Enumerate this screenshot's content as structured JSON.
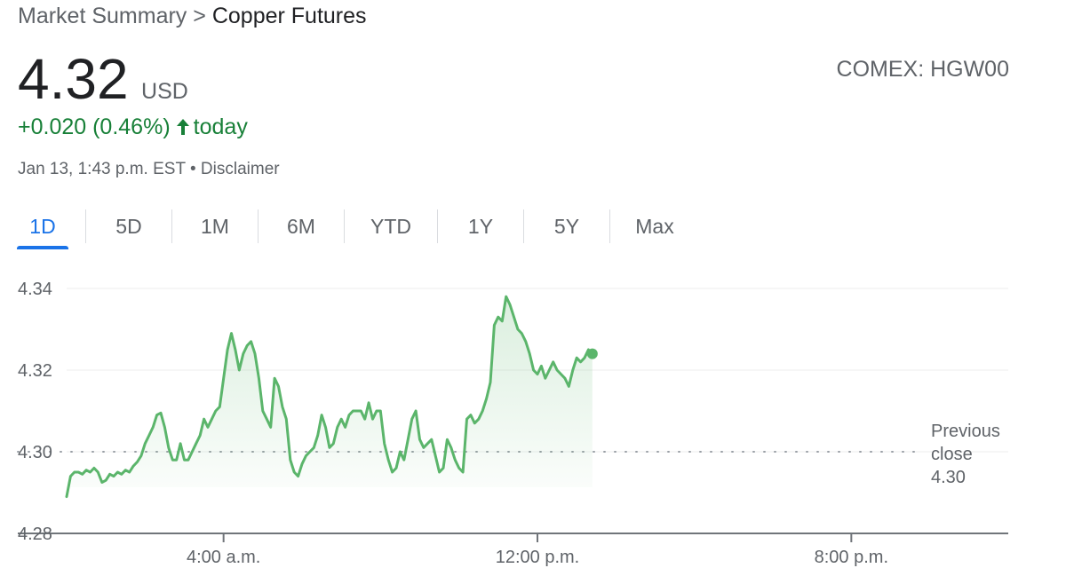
{
  "breadcrumb": {
    "parent": "Market Summary",
    "separator": ">",
    "current": "Copper Futures"
  },
  "quote": {
    "price": "4.32",
    "currency": "USD",
    "exchange": "COMEX: HGW00",
    "change": "+0.020 (0.46%)",
    "direction_icon": "arrow-up-icon",
    "period": "today",
    "timestamp": "Jan 13, 1:43 p.m. EST",
    "bullet": "•",
    "disclaimer": "Disclaimer"
  },
  "tabs": [
    {
      "label": "1D",
      "active": true
    },
    {
      "label": "5D",
      "active": false
    },
    {
      "label": "1M",
      "active": false
    },
    {
      "label": "6M",
      "active": false
    },
    {
      "label": "YTD",
      "active": false
    },
    {
      "label": "1Y",
      "active": false
    },
    {
      "label": "5Y",
      "active": false
    },
    {
      "label": "Max",
      "active": false
    }
  ],
  "colors": {
    "up": "#188038",
    "line": "#5bb56b",
    "accent": "#1a73e8"
  },
  "chart_data": {
    "type": "area",
    "x_unit": "hours",
    "ylim": [
      4.28,
      4.34
    ],
    "y_ticks": [
      4.34,
      4.32,
      4.3,
      4.28
    ],
    "x_ticks": [
      {
        "value": 4,
        "label": "4:00 a.m."
      },
      {
        "value": 12,
        "label": "12:00 p.m."
      },
      {
        "value": 20,
        "label": "8:00 p.m."
      }
    ],
    "xlim": [
      0,
      24
    ],
    "previous_close": {
      "value": 4.3,
      "label_lines": [
        "Previous",
        "close",
        "4.30"
      ]
    },
    "grid": true,
    "series": [
      {
        "points": [
          [
            0.0,
            4.289
          ],
          [
            0.1,
            4.294
          ],
          [
            0.2,
            4.295
          ],
          [
            0.3,
            4.295
          ],
          [
            0.4,
            4.2945
          ],
          [
            0.5,
            4.2955
          ],
          [
            0.6,
            4.295
          ],
          [
            0.7,
            4.296
          ],
          [
            0.8,
            4.295
          ],
          [
            0.9,
            4.2925
          ],
          [
            1.0,
            4.293
          ],
          [
            1.1,
            4.2945
          ],
          [
            1.2,
            4.294
          ],
          [
            1.3,
            4.295
          ],
          [
            1.4,
            4.2945
          ],
          [
            1.5,
            4.2955
          ],
          [
            1.6,
            4.295
          ],
          [
            1.7,
            4.2965
          ],
          [
            1.8,
            4.2975
          ],
          [
            1.9,
            4.299
          ],
          [
            2.0,
            4.302
          ],
          [
            2.1,
            4.304
          ],
          [
            2.2,
            4.306
          ],
          [
            2.3,
            4.309
          ],
          [
            2.4,
            4.3095
          ],
          [
            2.5,
            4.306
          ],
          [
            2.6,
            4.301
          ],
          [
            2.7,
            4.298
          ],
          [
            2.8,
            4.298
          ],
          [
            2.9,
            4.302
          ],
          [
            3.0,
            4.298
          ],
          [
            3.1,
            4.298
          ],
          [
            3.2,
            4.3
          ],
          [
            3.3,
            4.302
          ],
          [
            3.4,
            4.304
          ],
          [
            3.5,
            4.308
          ],
          [
            3.6,
            4.306
          ],
          [
            3.7,
            4.308
          ],
          [
            3.8,
            4.31
          ],
          [
            3.9,
            4.311
          ],
          [
            4.0,
            4.318
          ],
          [
            4.1,
            4.325
          ],
          [
            4.2,
            4.329
          ],
          [
            4.3,
            4.325
          ],
          [
            4.4,
            4.32
          ],
          [
            4.5,
            4.324
          ],
          [
            4.6,
            4.326
          ],
          [
            4.7,
            4.327
          ],
          [
            4.8,
            4.324
          ],
          [
            4.9,
            4.318
          ],
          [
            5.0,
            4.31
          ],
          [
            5.1,
            4.308
          ],
          [
            5.2,
            4.306
          ],
          [
            5.3,
            4.318
          ],
          [
            5.4,
            4.316
          ],
          [
            5.5,
            4.311
          ],
          [
            5.6,
            4.308
          ],
          [
            5.7,
            4.298
          ],
          [
            5.8,
            4.295
          ],
          [
            5.9,
            4.294
          ],
          [
            6.0,
            4.297
          ],
          [
            6.1,
            4.299
          ],
          [
            6.2,
            4.3
          ],
          [
            6.3,
            4.301
          ],
          [
            6.4,
            4.304
          ],
          [
            6.5,
            4.309
          ],
          [
            6.6,
            4.306
          ],
          [
            6.7,
            4.301
          ],
          [
            6.8,
            4.302
          ],
          [
            6.9,
            4.306
          ],
          [
            7.0,
            4.308
          ],
          [
            7.1,
            4.306
          ],
          [
            7.2,
            4.309
          ],
          [
            7.3,
            4.31
          ],
          [
            7.4,
            4.31
          ],
          [
            7.5,
            4.31
          ],
          [
            7.6,
            4.308
          ],
          [
            7.7,
            4.312
          ],
          [
            7.8,
            4.308
          ],
          [
            7.9,
            4.31
          ],
          [
            8.0,
            4.31
          ],
          [
            8.1,
            4.302
          ],
          [
            8.2,
            4.298
          ],
          [
            8.3,
            4.295
          ],
          [
            8.4,
            4.296
          ],
          [
            8.5,
            4.3
          ],
          [
            8.6,
            4.298
          ],
          [
            8.7,
            4.303
          ],
          [
            8.8,
            4.308
          ],
          [
            8.9,
            4.31
          ],
          [
            9.0,
            4.303
          ],
          [
            9.1,
            4.301
          ],
          [
            9.2,
            4.302
          ],
          [
            9.3,
            4.303
          ],
          [
            9.4,
            4.299
          ],
          [
            9.5,
            4.295
          ],
          [
            9.6,
            4.296
          ],
          [
            9.7,
            4.303
          ],
          [
            9.8,
            4.301
          ],
          [
            9.9,
            4.298
          ],
          [
            10.0,
            4.296
          ],
          [
            10.1,
            4.295
          ],
          [
            10.2,
            4.308
          ],
          [
            10.3,
            4.309
          ],
          [
            10.4,
            4.307
          ],
          [
            10.5,
            4.308
          ],
          [
            10.6,
            4.31
          ],
          [
            10.7,
            4.313
          ],
          [
            10.8,
            4.317
          ],
          [
            10.9,
            4.331
          ],
          [
            11.0,
            4.333
          ],
          [
            11.1,
            4.332
          ],
          [
            11.2,
            4.338
          ],
          [
            11.3,
            4.336
          ],
          [
            11.4,
            4.333
          ],
          [
            11.5,
            4.33
          ],
          [
            11.6,
            4.329
          ],
          [
            11.7,
            4.327
          ],
          [
            11.8,
            4.324
          ],
          [
            11.9,
            4.32
          ],
          [
            12.0,
            4.319
          ],
          [
            12.1,
            4.321
          ],
          [
            12.2,
            4.318
          ],
          [
            12.3,
            4.32
          ],
          [
            12.4,
            4.322
          ],
          [
            12.5,
            4.32
          ],
          [
            12.6,
            4.319
          ],
          [
            12.7,
            4.318
          ],
          [
            12.8,
            4.316
          ],
          [
            12.9,
            4.32
          ],
          [
            13.0,
            4.323
          ],
          [
            13.1,
            4.322
          ],
          [
            13.2,
            4.323
          ],
          [
            13.3,
            4.325
          ],
          [
            13.4,
            4.324
          ]
        ]
      }
    ]
  }
}
